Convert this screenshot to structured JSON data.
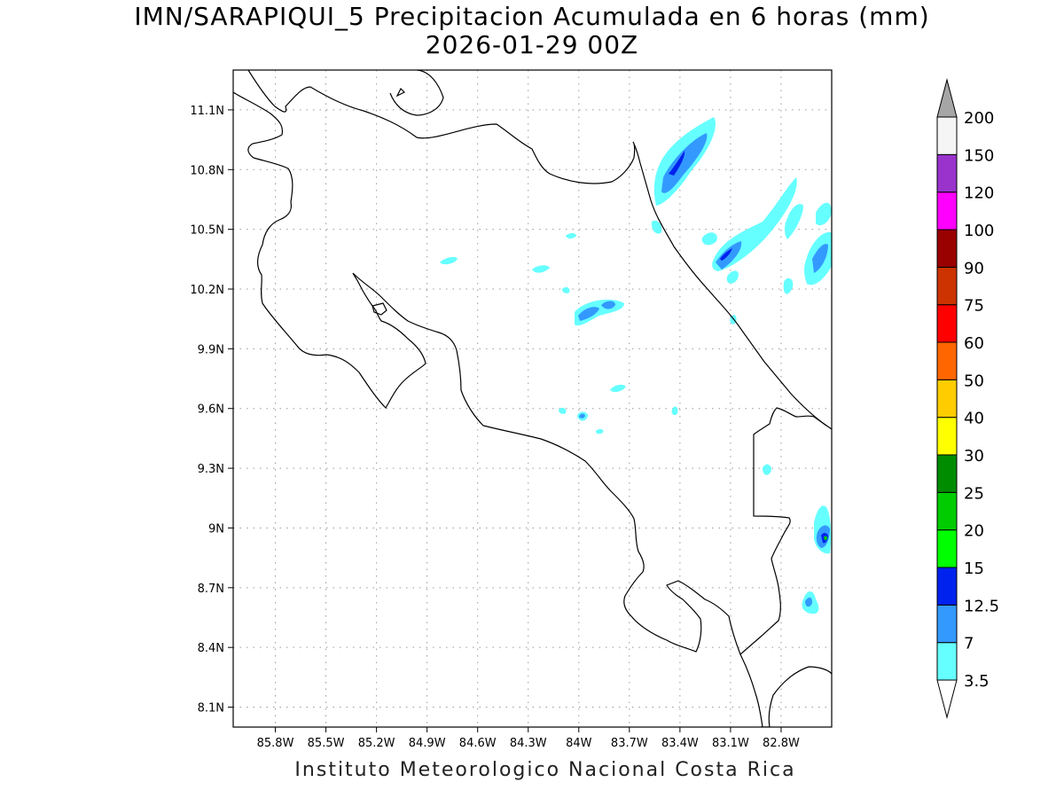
{
  "title": {
    "line1": "IMN/SARAPIQUI_5 Precipitacion Acumulada en 6 horas (mm)",
    "line2": "2026-01-29 00Z"
  },
  "footer": "Instituto Meteorologico Nacional Costa Rica",
  "map": {
    "lon_range": [
      -86.05,
      -82.5
    ],
    "lat_range": [
      8.0,
      11.3
    ],
    "lat_ticks": [
      "11.1N",
      "10.8N",
      "10.5N",
      "10.2N",
      "9.9N",
      "9.6N",
      "9.3N",
      "9N",
      "8.7N",
      "8.4N",
      "8.1N"
    ],
    "lat_values": [
      11.1,
      10.8,
      10.5,
      10.2,
      9.9,
      9.6,
      9.3,
      9.0,
      8.7,
      8.4,
      8.1
    ],
    "lon_ticks": [
      "85.8W",
      "85.5W",
      "85.2W",
      "84.9W",
      "84.6W",
      "84.3W",
      "84W",
      "83.7W",
      "83.4W",
      "83.1W",
      "82.8W"
    ],
    "lon_values": [
      -85.8,
      -85.5,
      -85.2,
      -84.9,
      -84.6,
      -84.3,
      -84.0,
      -83.7,
      -83.4,
      -83.1,
      -82.8
    ],
    "grid": "dotted"
  },
  "colorbar": {
    "levels": [
      "3.5",
      "7",
      "12.5",
      "15",
      "20",
      "25",
      "30",
      "40",
      "50",
      "60",
      "75",
      "90",
      "100",
      "120",
      "150",
      "200"
    ],
    "colors": [
      "#66ffff",
      "#3399ff",
      "#0022ee",
      "#00ff00",
      "#00cc00",
      "#008c00",
      "#ffff00",
      "#ffcc00",
      "#ff6600",
      "#ff0000",
      "#cc3300",
      "#990000",
      "#ff00ff",
      "#9933cc",
      "#f5f5f5"
    ],
    "over_color": "#a6a6a6",
    "under_color": "#ffffff"
  }
}
